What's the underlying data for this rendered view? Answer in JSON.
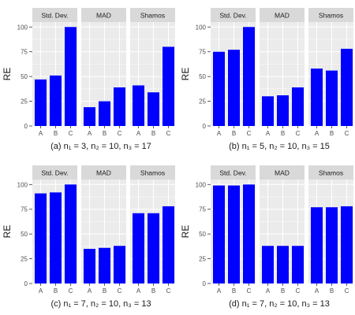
{
  "colors": {
    "bar": "#0000ff",
    "panel_bg": "#ebebeb",
    "strip_bg": "#d9d9d9",
    "grid": "#ffffff",
    "text": "#1a1a1a",
    "tick_text": "#4d4d4d"
  },
  "chart_data": [
    {
      "type": "bar",
      "caption": "(a)  n₁ = 3, n₂ = 10, n₃ = 17",
      "ylabel": "RE",
      "ylim": [
        0,
        105
      ],
      "yticks": [
        0,
        25,
        50,
        75,
        100
      ],
      "categories": [
        "A",
        "B",
        "C"
      ],
      "facets": [
        {
          "name": "Std. Dev.",
          "values": [
            47,
            51,
            100
          ]
        },
        {
          "name": "MAD",
          "values": [
            19,
            25,
            39
          ]
        },
        {
          "name": "Shamos",
          "values": [
            41,
            34,
            80
          ]
        }
      ]
    },
    {
      "type": "bar",
      "caption": "(b)  n₁ = 5, n₂ = 10, n₃ = 15",
      "ylabel": "RE",
      "ylim": [
        0,
        105
      ],
      "yticks": [
        0,
        25,
        50,
        75,
        100
      ],
      "categories": [
        "A",
        "B",
        "C"
      ],
      "facets": [
        {
          "name": "Std. Dev.",
          "values": [
            75,
            77,
            100
          ]
        },
        {
          "name": "MAD",
          "values": [
            30,
            31,
            39
          ]
        },
        {
          "name": "Shamos",
          "values": [
            58,
            56,
            78
          ]
        }
      ]
    },
    {
      "type": "bar",
      "caption": "(c)  n₁ = 7, n₂ = 10, n₃ = 13",
      "ylabel": "RE",
      "ylim": [
        0,
        105
      ],
      "yticks": [
        0,
        25,
        50,
        75,
        100
      ],
      "categories": [
        "A",
        "B",
        "C"
      ],
      "facets": [
        {
          "name": "Std. Dev.",
          "values": [
            91,
            92,
            100
          ]
        },
        {
          "name": "MAD",
          "values": [
            35,
            36,
            38
          ]
        },
        {
          "name": "Shamos",
          "values": [
            71,
            71,
            78
          ]
        }
      ]
    },
    {
      "type": "bar",
      "caption": "(d)  n₁ = 7, n₂ = 10, n₃ = 13",
      "ylabel": "RE",
      "ylim": [
        0,
        105
      ],
      "yticks": [
        0,
        25,
        50,
        75,
        100
      ],
      "categories": [
        "A",
        "B",
        "C"
      ],
      "facets": [
        {
          "name": "Std. Dev.",
          "values": [
            99,
            99,
            100
          ]
        },
        {
          "name": "MAD",
          "values": [
            38,
            38,
            38
          ]
        },
        {
          "name": "Shamos",
          "values": [
            77,
            77,
            78
          ]
        }
      ]
    }
  ]
}
